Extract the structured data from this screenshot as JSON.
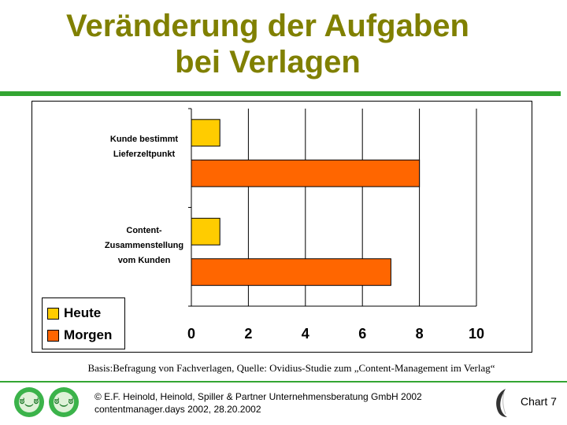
{
  "slide": {
    "title_line1": "Veränderung der Aufgaben",
    "title_line2": "bei Verlagen",
    "source": "Basis:Befragung von Fachverlagen, Quelle: Ovidius-Studie zum „Content-Management im Verlag“",
    "copyright_line1": "© E.F. Heinold, Heinold, Spiller & Partner Unternehmensberatung GmbH 2002",
    "copyright_line2": "contentmanager.days 2002, 28.20.2002",
    "chart_number": "Chart 7",
    "accent_color": "#33a532",
    "title_color": "#808000",
    "logos": [
      "smiley-logo",
      "smiley-logo",
      "feather-quill-logo"
    ]
  },
  "chart_data": {
    "type": "bar",
    "orientation": "horizontal",
    "categories": [
      [
        "Kunde bestimmt",
        "Lieferzeltpunkt"
      ],
      [
        "Content-",
        "Zusammenstellung",
        "vom Kunden"
      ]
    ],
    "series": [
      {
        "name": "Heute",
        "values": [
          1,
          1
        ],
        "color": "#ffcc00"
      },
      {
        "name": "Morgen",
        "values": [
          8,
          7
        ],
        "color": "#ff6600"
      }
    ],
    "xlim": [
      0,
      10
    ],
    "xticks": [
      "0",
      "2",
      "4",
      "6",
      "8",
      "10"
    ],
    "xtick_values": [
      0,
      2,
      4,
      6,
      8,
      10
    ],
    "grid": "vertical",
    "legend": "bottom-left"
  }
}
